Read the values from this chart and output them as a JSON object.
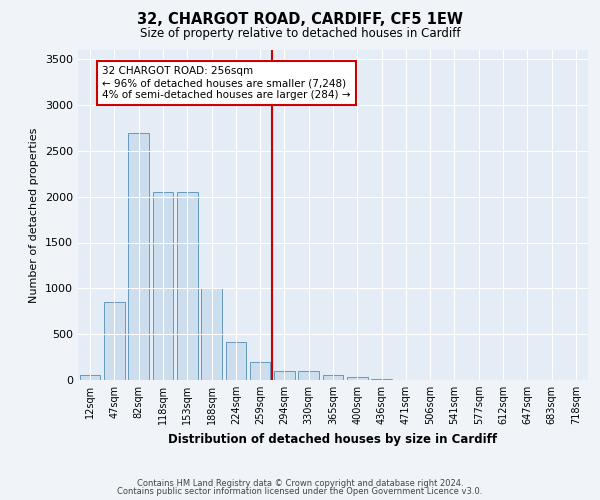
{
  "title_line1": "32, CHARGOT ROAD, CARDIFF, CF5 1EW",
  "title_line2": "Size of property relative to detached houses in Cardiff",
  "xlabel": "Distribution of detached houses by size in Cardiff",
  "ylabel": "Number of detached properties",
  "categories": [
    "12sqm",
    "47sqm",
    "82sqm",
    "118sqm",
    "153sqm",
    "188sqm",
    "224sqm",
    "259sqm",
    "294sqm",
    "330sqm",
    "365sqm",
    "400sqm",
    "436sqm",
    "471sqm",
    "506sqm",
    "541sqm",
    "577sqm",
    "612sqm",
    "647sqm",
    "683sqm",
    "718sqm"
  ],
  "values": [
    50,
    850,
    2700,
    2050,
    2050,
    1000,
    420,
    200,
    100,
    100,
    55,
    30,
    15,
    5,
    5,
    3,
    2,
    1,
    0,
    0,
    0
  ],
  "bar_color": "#ccdded",
  "bar_edge_color": "#6699bb",
  "vline_x_index": 7,
  "vline_color": "#cc0000",
  "annotation_text": "32 CHARGOT ROAD: 256sqm\n← 96% of detached houses are smaller (7,248)\n4% of semi-detached houses are larger (284) →",
  "annotation_box_color": "#ffffff",
  "annotation_box_edge": "#cc0000",
  "ylim": [
    0,
    3600
  ],
  "yticks": [
    0,
    500,
    1000,
    1500,
    2000,
    2500,
    3000,
    3500
  ],
  "footer_line1": "Contains HM Land Registry data © Crown copyright and database right 2024.",
  "footer_line2": "Contains public sector information licensed under the Open Government Licence v3.0.",
  "bg_color": "#f0f4f8",
  "plot_bg_color": "#e4edf5"
}
